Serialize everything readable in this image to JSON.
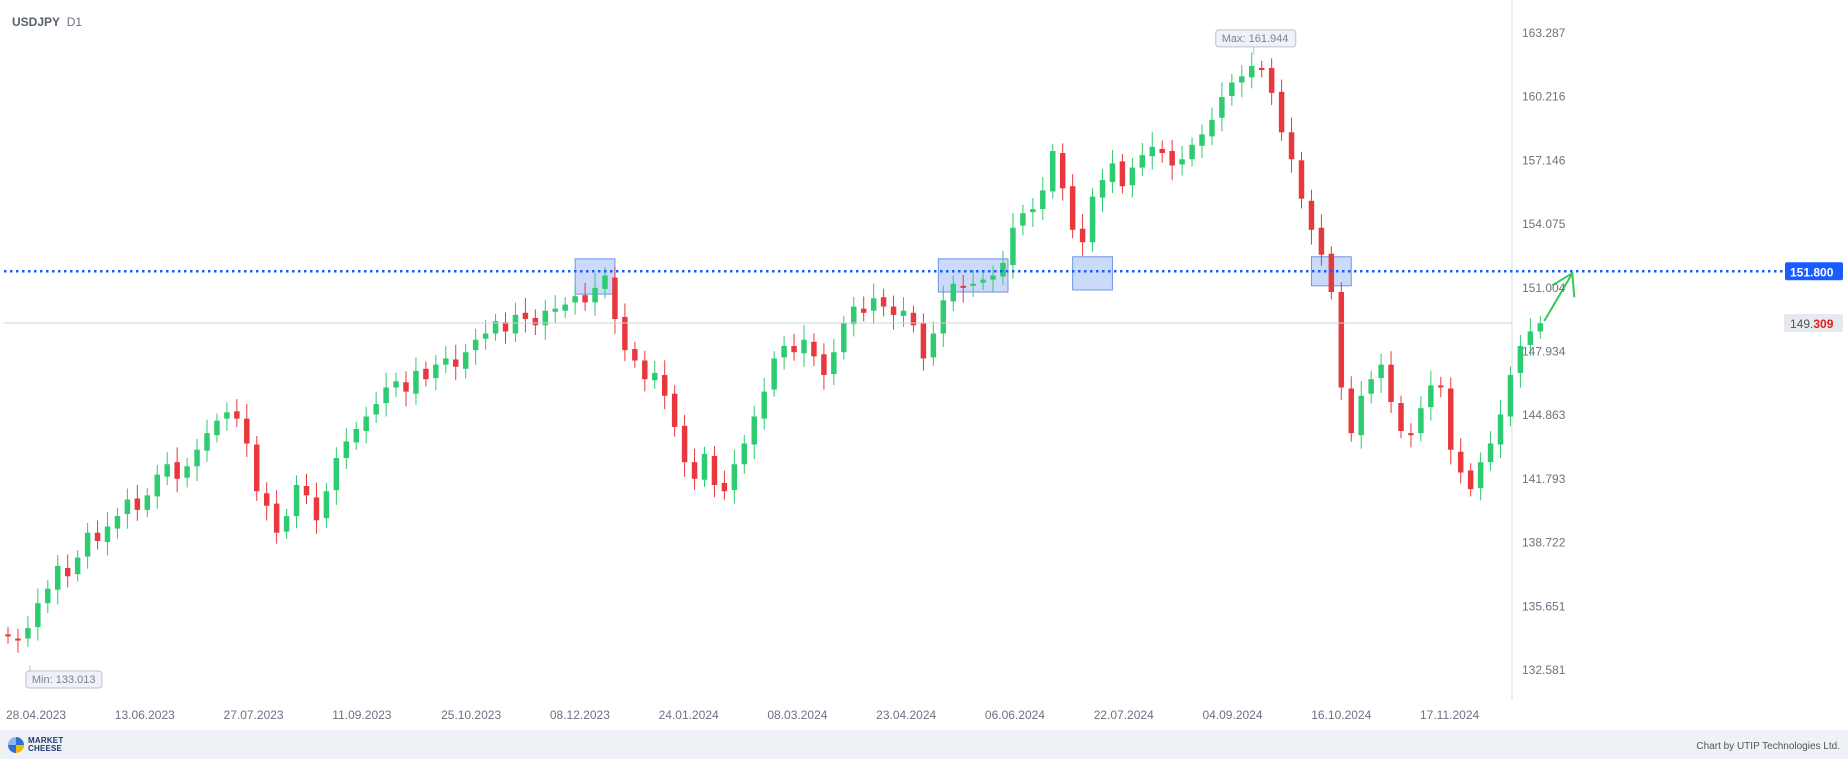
{
  "symbol": "USDJPY",
  "timeframe": "D1",
  "credit": "Chart by UTIP Technologies Ltd.",
  "logo": {
    "line1": "MARKET",
    "line2": "CHEESE"
  },
  "colors": {
    "up": "#2ecc71",
    "down": "#e8383d",
    "level": "#1a5cff",
    "box": "#b9cdf7",
    "boxEdge": "#6e95e6",
    "arrow": "#35c759",
    "price": "#e02020"
  },
  "chart_data": {
    "type": "candlestick",
    "title": "USDJPY D1",
    "x_ticks": [
      "28.04.2023",
      "13.06.2023",
      "27.07.2023",
      "11.09.2023",
      "25.10.2023",
      "08.12.2023",
      "24.01.2024",
      "08.03.2024",
      "23.04.2024",
      "06.06.2024",
      "22.07.2024",
      "04.09.2024",
      "16.10.2024",
      "17.11.2024"
    ],
    "y_ticks": [
      "163.287",
      "160.216",
      "157.146",
      "154.075",
      "151.004",
      "147.934",
      "144.863",
      "141.793",
      "138.722",
      "135.651",
      "132.581"
    ],
    "ylim": [
      132.581,
      163.287
    ],
    "level_line": {
      "value": 151.8,
      "label": "151.800"
    },
    "current_price": {
      "value": 149.309,
      "label_main": "149.",
      "label_tail": "309"
    },
    "max_marker": {
      "value": 161.944,
      "label": "Max: 161.944"
    },
    "min_marker": {
      "value": 133.013,
      "label": "Min: 133.013"
    },
    "closes": [
      134.2,
      134.0,
      134.6,
      135.8,
      136.5,
      137.6,
      137.1,
      138.0,
      139.2,
      138.8,
      139.5,
      140.0,
      140.8,
      140.3,
      141.0,
      142.0,
      142.5,
      141.8,
      142.4,
      143.2,
      144.0,
      144.6,
      145.0,
      144.7,
      143.5,
      141.2,
      140.5,
      139.2,
      140.0,
      141.5,
      141.0,
      139.8,
      141.2,
      142.8,
      143.6,
      144.2,
      144.8,
      145.4,
      146.2,
      146.5,
      146.0,
      147.0,
      146.6,
      147.3,
      147.6,
      147.2,
      147.9,
      148.5,
      148.8,
      149.4,
      148.9,
      149.7,
      149.5,
      149.2,
      149.9,
      150.0,
      150.2,
      150.6,
      150.3,
      151.0,
      151.6,
      149.5,
      148.0,
      147.5,
      146.6,
      146.9,
      145.8,
      144.3,
      142.6,
      141.8,
      143.0,
      141.5,
      141.2,
      142.5,
      143.5,
      144.8,
      146.0,
      147.6,
      148.2,
      147.9,
      148.5,
      147.7,
      146.8,
      147.9,
      149.3,
      150.1,
      149.8,
      150.5,
      150.1,
      149.7,
      149.9,
      149.2,
      147.6,
      148.8,
      150.4,
      151.2,
      151.0,
      151.2,
      151.4,
      151.6,
      152.2,
      153.9,
      154.6,
      154.8,
      155.7,
      157.6,
      155.8,
      153.8,
      153.2,
      155.4,
      156.2,
      157.0,
      155.9,
      156.8,
      157.4,
      157.8,
      157.5,
      156.9,
      157.2,
      157.9,
      158.4,
      159.1,
      160.2,
      160.9,
      161.2,
      161.7,
      161.5,
      160.4,
      158.5,
      157.2,
      155.3,
      153.8,
      152.6,
      150.8,
      146.2,
      144.0,
      145.8,
      146.6,
      147.3,
      145.5,
      144.1,
      143.9,
      145.2,
      146.3,
      146.2,
      143.2,
      142.1,
      141.3,
      142.6,
      143.5,
      144.9,
      146.8,
      148.2,
      148.9,
      149.3
    ],
    "boxes": [
      {
        "from": 150.7,
        "to": 152.4
      },
      {
        "from": 150.8,
        "to": 152.4
      },
      {
        "from": 150.9,
        "to": 152.5
      },
      {
        "from": 151.1,
        "to": 152.5
      }
    ],
    "arrow_target": {
      "value": 151.8
    }
  }
}
